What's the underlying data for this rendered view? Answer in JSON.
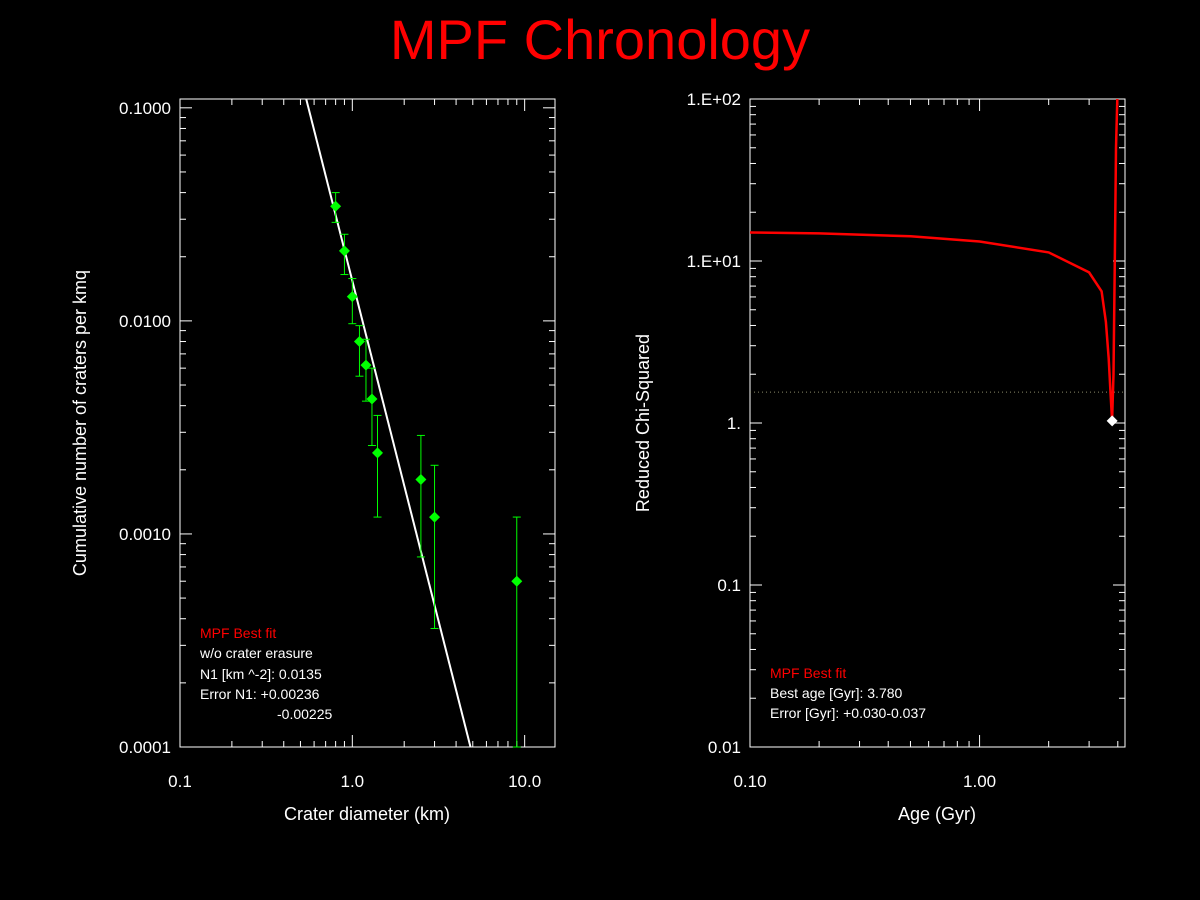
{
  "title": "MPF Chronology",
  "colors": {
    "background": "#000000",
    "title": "#ff0000",
    "fit_line": "#ffffff",
    "data": "#00ff00",
    "chi_curve": "#ff0000",
    "best_marker": "#ffffff"
  },
  "left_panel": {
    "notes": {
      "heading": "MPF Best fit",
      "line1": "w/o crater erasure",
      "line2": "N1 [km ^-2]: 0.0135",
      "line3": "Error N1: +0.00236",
      "line4": "-0.00225"
    }
  },
  "right_panel": {
    "notes": {
      "heading": "MPF Best fit",
      "line1": "Best age [Gyr]: 3.780",
      "line2": "Error [Gyr]: +0.030-0.037"
    }
  },
  "chart_data": [
    {
      "type": "scatter",
      "xlabel": "Crater diameter (km)",
      "ylabel": "Cumulative number of craters per kmq",
      "x_scale": "log",
      "y_scale": "log",
      "xlim": [
        0.1,
        15
      ],
      "ylim": [
        0.0001,
        0.11
      ],
      "x_ticks": [
        0.1,
        1.0,
        10.0
      ],
      "x_tick_labels": [
        "0.1",
        "1.0",
        "10.0"
      ],
      "y_ticks": [
        0.0001,
        0.001,
        0.01,
        0.1
      ],
      "y_tick_labels": [
        "0.0001",
        "0.0010",
        "0.0100",
        "0.1000"
      ],
      "series": [
        {
          "points": [
            {
              "x": 0.8,
              "y": 0.0345,
              "ylo": 0.029,
              "yhi": 0.04
            },
            {
              "x": 0.9,
              "y": 0.0213,
              "ylo": 0.0165,
              "yhi": 0.0255
            },
            {
              "x": 1.0,
              "y": 0.013,
              "ylo": 0.0097,
              "yhi": 0.0158
            },
            {
              "x": 1.1,
              "y": 0.008,
              "ylo": 0.0055,
              "yhi": 0.0095
            },
            {
              "x": 1.2,
              "y": 0.0062,
              "ylo": 0.0042,
              "yhi": 0.0082
            },
            {
              "x": 1.3,
              "y": 0.0043,
              "ylo": 0.0026,
              "yhi": 0.006
            },
            {
              "x": 1.4,
              "y": 0.0024,
              "ylo": 0.0012,
              "yhi": 0.0036
            },
            {
              "x": 2.5,
              "y": 0.0018,
              "ylo": 0.00078,
              "yhi": 0.0029
            },
            {
              "x": 3.0,
              "y": 0.0012,
              "ylo": 0.00036,
              "yhi": 0.0021
            },
            {
              "x": 9.0,
              "y": 0.0006,
              "ylo": 0.0001,
              "yhi": 0.0012
            }
          ]
        }
      ],
      "fit_line": {
        "x": [
          0.54,
          4.85
        ],
        "y": [
          0.11,
          0.0001
        ]
      }
    },
    {
      "type": "line",
      "xlabel": "Age (Gyr)",
      "ylabel": "Reduced Chi-Squared",
      "x_scale": "log",
      "y_scale": "log",
      "xlim": [
        0.1,
        4.3
      ],
      "ylim": [
        0.01,
        100
      ],
      "x_ticks": [
        0.1,
        1.0
      ],
      "x_tick_labels": [
        "0.10",
        "1.00"
      ],
      "y_ticks": [
        0.01,
        0.1,
        1,
        10,
        100
      ],
      "y_tick_labels": [
        "0.01",
        "0.1",
        "1.",
        "1.E+01",
        "1.E+02"
      ],
      "reference_level": 1.55,
      "best_point": {
        "x": 3.78,
        "y": 1.03
      },
      "curve": {
        "x": [
          0.1,
          0.2,
          0.5,
          1.0,
          2.0,
          3.0,
          3.4,
          3.55,
          3.65,
          3.72,
          3.78,
          3.83,
          3.88,
          3.93,
          3.98
        ],
        "y": [
          15.0,
          14.8,
          14.2,
          13.2,
          11.3,
          8.5,
          6.5,
          4.2,
          2.5,
          1.5,
          1.03,
          2.0,
          10.0,
          50.0,
          100.0
        ]
      }
    }
  ]
}
